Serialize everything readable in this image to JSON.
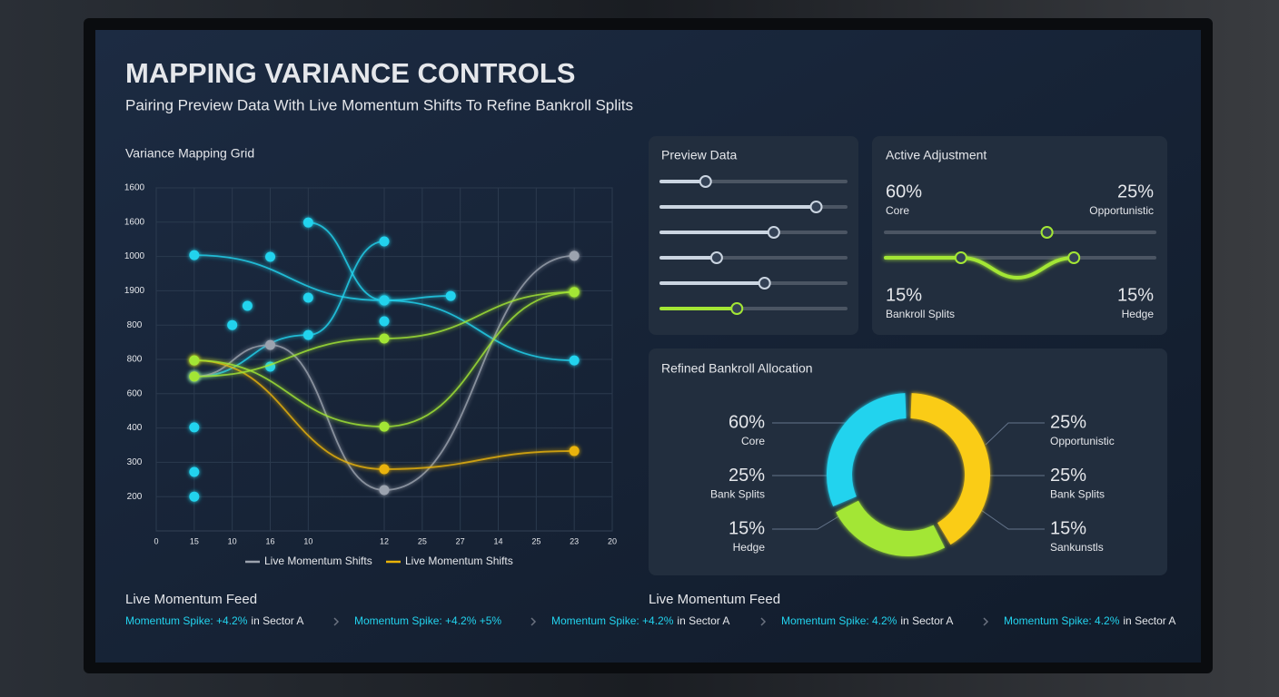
{
  "header": {
    "title": "MAPPING VARIANCE CONTROLS",
    "subtitle": "Pairing Preview Data With Live Momentum Shifts To Refine Bankroll Splits"
  },
  "chart_data": {
    "type": "line",
    "title": "Variance Mapping Grid",
    "grid": true,
    "xlim": [
      0,
      12
    ],
    "xticks": [
      0,
      {
        "value": 1,
        "label": "15"
      },
      {
        "value": 2,
        "label": "10"
      },
      {
        "value": 3,
        "label": "16"
      },
      {
        "value": 4,
        "label": "10"
      },
      {
        "value": 6,
        "label": "12"
      },
      {
        "value": 7,
        "label": "25"
      },
      {
        "value": 8,
        "label": "27"
      },
      {
        "value": 9,
        "label": "14"
      },
      {
        "value": 10,
        "label": "25"
      },
      {
        "value": 11,
        "label": "23"
      },
      {
        "value": 12,
        "label": "20"
      }
    ],
    "ylim": [
      100,
      1100
    ],
    "yticks": [
      200,
      300,
      400,
      {
        "value": 500,
        "label": "600"
      },
      {
        "value": 600,
        "label": "800"
      },
      {
        "value": 700,
        "label": "800"
      },
      {
        "value": 800,
        "label": "1900"
      },
      {
        "value": 900,
        "label": "1000"
      },
      {
        "value": 1000,
        "label": "1600"
      },
      {
        "value": 1100,
        "label": "1600"
      }
    ],
    "series": [
      {
        "color": "#22d3ee",
        "x": [
          1,
          6,
          11
        ],
        "values": [
          904,
          772,
          597
        ]
      },
      {
        "color": "#22d3ee",
        "x": [
          1,
          4,
          6
        ],
        "values": [
          550,
          671,
          944
        ]
      },
      {
        "color": "#22d3ee",
        "x": [
          4,
          6,
          7.75
        ],
        "values": [
          999,
          772,
          785
        ]
      },
      {
        "color": "#22d3ee",
        "line": false,
        "x": [
          1,
          1,
          1,
          2,
          2.4,
          3,
          3,
          4,
          6
        ],
        "values": [
          402,
          272,
          200,
          700,
          756,
          579,
          899,
          780,
          711
        ]
      },
      {
        "name": "Live Momentum Shifts",
        "color": "#9ca3af",
        "x": [
          1,
          3,
          6,
          11
        ],
        "values": [
          550,
          642,
          219,
          902
        ]
      },
      {
        "name": "Live Momentum Shifts",
        "color": "#eab308",
        "x": [
          1,
          6,
          11
        ],
        "values": [
          597,
          280,
          333
        ]
      },
      {
        "color": "#a3e635",
        "x": [
          1,
          6,
          11
        ],
        "values": [
          597,
          404,
          796
        ]
      },
      {
        "color": "#a3e635",
        "x": [
          1,
          6,
          11
        ],
        "values": [
          550,
          661,
          796
        ]
      }
    ]
  },
  "preview": {
    "title": "Preview Data",
    "sliders": [
      {
        "value": 24,
        "color": "#cbd5e1"
      },
      {
        "value": 84,
        "color": "#cbd5e1"
      },
      {
        "value": 61,
        "color": "#cbd5e1"
      },
      {
        "value": 30,
        "color": "#cbd5e1"
      },
      {
        "value": 56,
        "color": "#cbd5e1"
      },
      {
        "value": 41,
        "color": "#a3e635"
      }
    ]
  },
  "active": {
    "title": "Active Adjustment",
    "top_left": {
      "value": "60%",
      "label": "Core"
    },
    "top_right": {
      "value": "25%",
      "label": "Opportunistic"
    },
    "bottom_left": {
      "value": "15%",
      "label": "Bankroll Splits"
    },
    "bottom_right": {
      "value": "15%",
      "label": "Hedge"
    },
    "slider": 60,
    "wave_knobs": [
      28,
      70
    ],
    "color": "#a3e635"
  },
  "allocation": {
    "title": "Refined Bankroll Allocation",
    "segments": [
      {
        "value": 42,
        "color": "#facc15"
      },
      {
        "value": 26,
        "color": "#a3e635"
      },
      {
        "value": 32,
        "color": "#22d3ee"
      }
    ],
    "left_labels": [
      {
        "value": "60%",
        "label": "Core"
      },
      {
        "value": "25%",
        "label": "Bank Splits"
      },
      {
        "value": "15%",
        "label": "Hedge"
      }
    ],
    "right_labels": [
      {
        "value": "25%",
        "label": "Opportunistic"
      },
      {
        "value": "25%",
        "label": "Bank Splits"
      },
      {
        "value": "15%",
        "label": "Sankunstls"
      }
    ]
  },
  "feed": {
    "headings": [
      "Live Momentum Feed",
      "Live Momentum Feed"
    ],
    "items": [
      {
        "highlight": "Momentum Spike: +4.2%",
        "text": "in Sector A"
      },
      {
        "highlight": "Momentum Spike: +4.2% +5%"
      },
      {
        "highlight": "Momentum Spike: +4.2%",
        "text": "in Sector A"
      },
      {
        "highlight": "Momentum Spike: 4.2%",
        "text": "in Sector A"
      },
      {
        "highlight": "Momentum Spike: 4.2%",
        "text": "in Sector A"
      }
    ]
  }
}
